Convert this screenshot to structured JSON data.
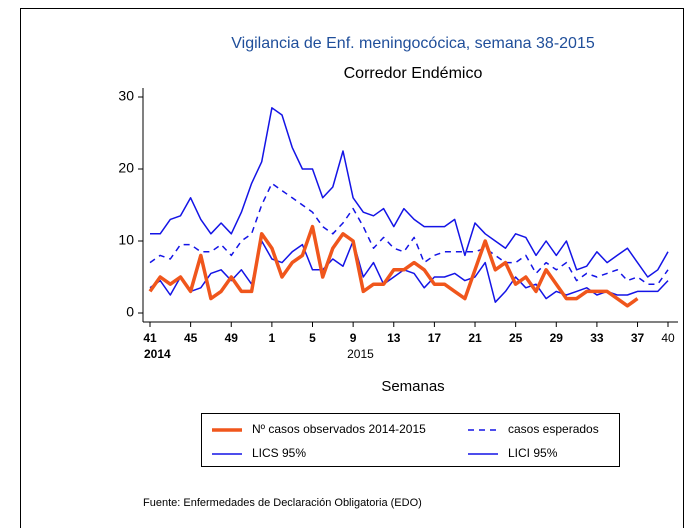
{
  "chart_data": {
    "type": "line",
    "title": "Vigilancia de Enf. meningocócica, semana 38-2015",
    "subtitle": "Corredor Endémico",
    "x_label": "Semanas",
    "source": "Fuente: Enfermedades de Declaración Obligatoria (EDO)",
    "categories": [
      "41",
      null,
      null,
      null,
      "45",
      null,
      null,
      null,
      "49",
      null,
      null,
      null,
      "1",
      null,
      null,
      null,
      "5",
      null,
      null,
      null,
      "9",
      null,
      null,
      null,
      "13",
      null,
      null,
      null,
      "17",
      null,
      null,
      null,
      "21",
      null,
      null,
      null,
      "25",
      null,
      null,
      null,
      "29",
      null,
      null,
      null,
      "33",
      null,
      null,
      null,
      "37",
      null,
      null,
      "40"
    ],
    "x_group_labels": [
      "2014",
      "2015"
    ],
    "ylim": [
      -1.25,
      31.25
    ],
    "yticks": [
      0,
      10,
      20,
      30
    ],
    "grid": false,
    "series": [
      {
        "name": "Nº casos observados 2014-2015",
        "color": "#f0561c",
        "line_style": "solid",
        "line_width": 3.5,
        "values": [
          3,
          5,
          4,
          5,
          3,
          8,
          2,
          3,
          5,
          3,
          3,
          11,
          9,
          5,
          7,
          8,
          12,
          5,
          9,
          11,
          10,
          3,
          4,
          4,
          6,
          6,
          7,
          6,
          4,
          4,
          3,
          2,
          6,
          10,
          6,
          7,
          4,
          5,
          3,
          6,
          4,
          2,
          2,
          3,
          3,
          3,
          2,
          1,
          2,
          null,
          null,
          null
        ]
      },
      {
        "name": "casos esperados",
        "color": "#1414e6",
        "line_style": "dashed",
        "line_width": 1.5,
        "values": [
          7,
          8,
          7.5,
          9.5,
          9.5,
          8.5,
          8.5,
          9.5,
          8,
          10,
          11,
          15,
          18,
          17,
          16,
          15,
          14,
          12,
          11,
          12.5,
          14.5,
          12,
          9,
          10.5,
          9,
          8.5,
          10.5,
          7,
          8,
          8.5,
          8.5,
          8.5,
          8.5,
          9,
          8,
          7,
          7,
          8,
          5.5,
          7,
          6,
          7,
          4.5,
          5.5,
          5,
          5.5,
          6,
          4.5,
          5,
          4,
          4,
          6
        ]
      },
      {
        "name": "LICS 95%",
        "color": "#1414e6",
        "line_style": "solid",
        "line_width": 1.5,
        "values": [
          11,
          11,
          13,
          13.5,
          16,
          13,
          11,
          12.5,
          11,
          14,
          18,
          21,
          28.5,
          27.5,
          23,
          20,
          20,
          16,
          17.5,
          22.5,
          16,
          14,
          13.5,
          14.5,
          12,
          14.5,
          13,
          12,
          12,
          12,
          13,
          8,
          12.5,
          11,
          10,
          9,
          11,
          10.5,
          8,
          10,
          8,
          10,
          6,
          6.5,
          8.5,
          7,
          8,
          9,
          7,
          5,
          6,
          8.5
        ]
      },
      {
        "name": "LICI 95%",
        "color": "#1414e6",
        "line_style": "solid",
        "line_width": 1.5,
        "values": [
          3.5,
          4.5,
          2.5,
          5,
          3,
          3.5,
          5.5,
          6,
          4.5,
          6,
          4,
          10,
          7.5,
          7,
          8.5,
          9.5,
          6,
          6,
          7.5,
          6.5,
          10,
          5,
          7,
          4,
          5,
          6,
          5.5,
          3.5,
          5,
          5,
          5.5,
          4.5,
          5,
          7,
          1.5,
          3,
          5,
          3.5,
          4,
          2,
          3,
          2.5,
          3,
          3.5,
          2.5,
          3,
          2.5,
          2.5,
          3,
          3,
          3,
          4.5
        ]
      }
    ]
  }
}
